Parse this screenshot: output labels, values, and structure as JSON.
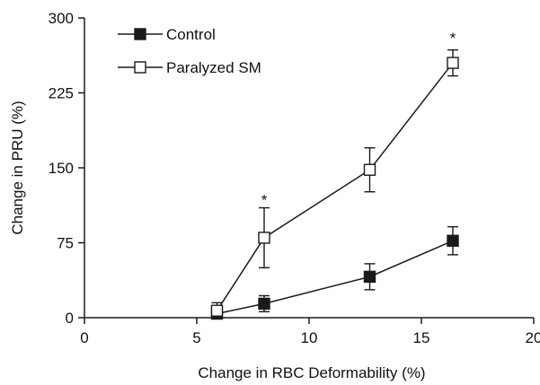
{
  "chart_data": {
    "type": "line",
    "xlabel": "Change in RBC Deformability (%)",
    "ylabel": "Change in PRU (%)",
    "xlim": [
      0,
      20
    ],
    "ylim": [
      0,
      300
    ],
    "xticks": [
      "0",
      "5",
      "10",
      "15",
      "20"
    ],
    "yticks": [
      "0",
      "75",
      "150",
      "225",
      "300"
    ],
    "grid": false,
    "legend_position": "top-left",
    "series": [
      {
        "name": "Control",
        "marker": "filled-square",
        "color": "#1a1a1a",
        "points": [
          {
            "x": 5.9,
            "y": 4,
            "err": 5
          },
          {
            "x": 8.0,
            "y": 14,
            "err": 8
          },
          {
            "x": 12.7,
            "y": 41,
            "err": 13
          },
          {
            "x": 16.4,
            "y": 77,
            "err": 14
          }
        ]
      },
      {
        "name": "Paralyzed SM",
        "marker": "open-square",
        "color": "#1a1a1a",
        "points": [
          {
            "x": 5.9,
            "y": 7,
            "err": 8
          },
          {
            "x": 8.0,
            "y": 80,
            "err": 30
          },
          {
            "x": 12.7,
            "y": 148,
            "err": 22
          },
          {
            "x": 16.4,
            "y": 255,
            "err": 13
          }
        ]
      }
    ],
    "annotations": [
      {
        "text": "*",
        "x": 8.0,
        "y": 120
      },
      {
        "text": "*",
        "x": 16.4,
        "y": 282
      }
    ]
  }
}
